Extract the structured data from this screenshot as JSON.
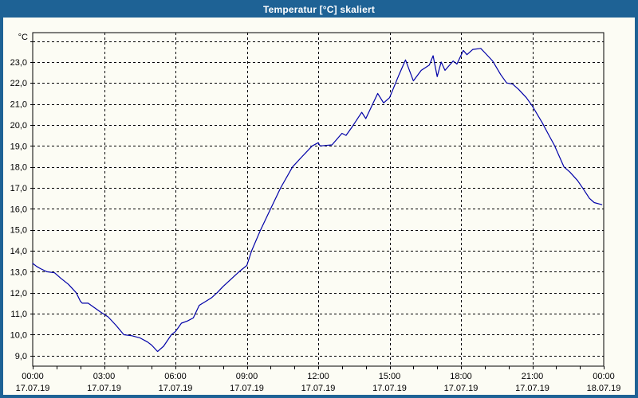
{
  "window": {
    "title": "Temperatur [°C] skaliert",
    "titlebar_color": "#1e6295",
    "border_color": "#1e6295",
    "background_color": "#fcfcf4"
  },
  "chart_data": {
    "type": "line",
    "title": "Temperatur [°C] skaliert",
    "grid": {
      "style": "dashed",
      "color": "#000000",
      "legend": "none"
    },
    "y_axis": {
      "unit": "°C",
      "range": [
        8.5,
        24.4
      ],
      "tick_step": 1,
      "ticks": [
        {
          "value": 9,
          "label": "9,0"
        },
        {
          "value": 10,
          "label": "10,0"
        },
        {
          "value": 11,
          "label": "11,0"
        },
        {
          "value": 12,
          "label": "12,0"
        },
        {
          "value": 13,
          "label": "13,0"
        },
        {
          "value": 14,
          "label": "14,0"
        },
        {
          "value": 15,
          "label": "15,0"
        },
        {
          "value": 16,
          "label": "16,0"
        },
        {
          "value": 17,
          "label": "17,0"
        },
        {
          "value": 18,
          "label": "18,0"
        },
        {
          "value": 19,
          "label": "19,0"
        },
        {
          "value": 20,
          "label": "20,0"
        },
        {
          "value": 21,
          "label": "21,0"
        },
        {
          "value": 22,
          "label": "22,0"
        },
        {
          "value": 23,
          "label": "23,0"
        },
        {
          "value": 24,
          "label": ""
        }
      ]
    },
    "x_axis": {
      "range_hours": [
        0,
        24
      ],
      "minor_tick_every_hours": 1,
      "ticks": [
        {
          "hour": 0,
          "time": "00:00",
          "date": "17.07.19"
        },
        {
          "hour": 3,
          "time": "03:00",
          "date": "17.07.19"
        },
        {
          "hour": 6,
          "time": "06:00",
          "date": "17.07.19"
        },
        {
          "hour": 9,
          "time": "09:00",
          "date": "17.07.19"
        },
        {
          "hour": 12,
          "time": "12:00",
          "date": "17.07.19"
        },
        {
          "hour": 15,
          "time": "15:00",
          "date": "17.07.19"
        },
        {
          "hour": 18,
          "time": "18:00",
          "date": "17.07.19"
        },
        {
          "hour": 21,
          "time": "21:00",
          "date": "17.07.19"
        },
        {
          "hour": 24,
          "time": "00:00",
          "date": "18.07.19"
        }
      ]
    },
    "series": [
      {
        "name": "Temperatur [°C]",
        "color": "#0000a8",
        "points": [
          [
            0.0,
            13.4
          ],
          [
            0.17,
            13.25
          ],
          [
            0.33,
            13.15
          ],
          [
            0.6,
            13.0
          ],
          [
            0.92,
            12.95
          ],
          [
            1.17,
            12.7
          ],
          [
            1.5,
            12.4
          ],
          [
            1.83,
            12.0
          ],
          [
            2.0,
            11.6
          ],
          [
            2.08,
            11.5
          ],
          [
            2.33,
            11.5
          ],
          [
            2.58,
            11.3
          ],
          [
            2.83,
            11.1
          ],
          [
            3.17,
            10.85
          ],
          [
            3.5,
            10.45
          ],
          [
            3.83,
            10.0
          ],
          [
            4.17,
            9.95
          ],
          [
            4.5,
            9.85
          ],
          [
            4.83,
            9.65
          ],
          [
            5.0,
            9.5
          ],
          [
            5.25,
            9.2
          ],
          [
            5.5,
            9.45
          ],
          [
            5.83,
            10.0
          ],
          [
            6.0,
            10.15
          ],
          [
            6.25,
            10.55
          ],
          [
            6.5,
            10.65
          ],
          [
            6.75,
            10.8
          ],
          [
            7.0,
            11.4
          ],
          [
            7.5,
            11.75
          ],
          [
            7.75,
            12.0
          ],
          [
            8.0,
            12.3
          ],
          [
            8.67,
            13.0
          ],
          [
            9.0,
            13.3
          ],
          [
            9.2,
            14.0
          ],
          [
            9.58,
            15.0
          ],
          [
            10.0,
            16.0
          ],
          [
            10.42,
            17.0
          ],
          [
            10.92,
            18.0
          ],
          [
            11.33,
            18.5
          ],
          [
            11.75,
            19.0
          ],
          [
            12.0,
            19.15
          ],
          [
            12.08,
            19.0
          ],
          [
            12.58,
            19.05
          ],
          [
            13.0,
            19.6
          ],
          [
            13.17,
            19.5
          ],
          [
            13.42,
            19.9
          ],
          [
            13.83,
            20.6
          ],
          [
            14.0,
            20.3
          ],
          [
            14.5,
            21.5
          ],
          [
            14.75,
            21.05
          ],
          [
            15.0,
            21.3
          ],
          [
            15.4,
            22.4
          ],
          [
            15.67,
            23.1
          ],
          [
            16.0,
            22.1
          ],
          [
            16.33,
            22.6
          ],
          [
            16.67,
            22.85
          ],
          [
            16.83,
            23.3
          ],
          [
            17.0,
            22.3
          ],
          [
            17.17,
            23.0
          ],
          [
            17.33,
            22.6
          ],
          [
            17.67,
            23.05
          ],
          [
            17.83,
            22.9
          ],
          [
            18.1,
            23.55
          ],
          [
            18.25,
            23.35
          ],
          [
            18.5,
            23.6
          ],
          [
            18.83,
            23.65
          ],
          [
            19.0,
            23.45
          ],
          [
            19.33,
            23.05
          ],
          [
            19.67,
            22.4
          ],
          [
            19.92,
            22.0
          ],
          [
            20.17,
            21.95
          ],
          [
            20.42,
            21.7
          ],
          [
            20.75,
            21.3
          ],
          [
            21.0,
            20.9
          ],
          [
            21.42,
            20.1
          ],
          [
            21.7,
            19.5
          ],
          [
            21.92,
            19.05
          ],
          [
            22.33,
            18.0
          ],
          [
            22.58,
            17.75
          ],
          [
            22.9,
            17.35
          ],
          [
            23.17,
            16.9
          ],
          [
            23.4,
            16.5
          ],
          [
            23.6,
            16.3
          ],
          [
            23.92,
            16.2
          ]
        ]
      }
    ]
  }
}
